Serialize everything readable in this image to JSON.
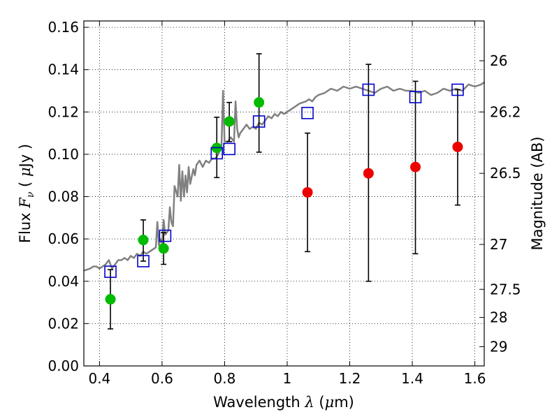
{
  "chart_data": {
    "type": "scatter",
    "xlabel": "Wavelength  λ (μm)",
    "xlabel_parts": {
      "text": "Wavelength  ",
      "lambda": "λ",
      "open": " (",
      "mu": "μ",
      "unit": "m)"
    },
    "ylabel": "Flux  Fν  ( μJy )",
    "ylabel_parts": {
      "text": "Flux  ",
      "F": "F",
      "nu": "ν",
      "open": "  ( ",
      "mu": "μ",
      "unit": "Jy )"
    },
    "y2label": "Magnitude (AB)",
    "xlim": [
      0.35,
      1.63
    ],
    "ylim": [
      0.0,
      0.163
    ],
    "grid": true,
    "x_ticks": [
      {
        "value": 0.4,
        "label": "0.4"
      },
      {
        "value": 0.6,
        "label": "0.6"
      },
      {
        "value": 0.8,
        "label": "0.8"
      },
      {
        "value": 1.0,
        "label": "1"
      },
      {
        "value": 1.2,
        "label": "1.2"
      },
      {
        "value": 1.4,
        "label": "1.4"
      },
      {
        "value": 1.6,
        "label": "1.6"
      }
    ],
    "y_ticks": [
      {
        "value": 0.0,
        "label": "0.00"
      },
      {
        "value": 0.02,
        "label": "0.02"
      },
      {
        "value": 0.04,
        "label": "0.04"
      },
      {
        "value": 0.06,
        "label": "0.06"
      },
      {
        "value": 0.08,
        "label": "0.08"
      },
      {
        "value": 0.1,
        "label": "0.10"
      },
      {
        "value": 0.12,
        "label": "0.12"
      },
      {
        "value": 0.14,
        "label": "0.14"
      },
      {
        "value": 0.16,
        "label": "0.16"
      }
    ],
    "y2_ticks": [
      {
        "flux": 0.1442,
        "label": "26"
      },
      {
        "flux": 0.12,
        "label": "26.2"
      },
      {
        "flux": 0.091,
        "label": "26.5"
      },
      {
        "flux": 0.0574,
        "label": "27"
      },
      {
        "flux": 0.0362,
        "label": "27.5"
      },
      {
        "flux": 0.0229,
        "label": "28"
      },
      {
        "flux": 0.0091,
        "label": "29"
      }
    ],
    "colors": {
      "model": "#808080",
      "green": "#00bb00",
      "red": "#ee0000",
      "blue": "#0000cc",
      "error": "#000000"
    },
    "series": [
      {
        "name": "model spectrum",
        "kind": "line",
        "x": [
          0.35,
          0.37,
          0.38,
          0.39,
          0.4,
          0.41,
          0.42,
          0.43,
          0.44,
          0.45,
          0.46,
          0.47,
          0.48,
          0.49,
          0.5,
          0.51,
          0.52,
          0.53,
          0.54,
          0.55,
          0.56,
          0.57,
          0.58,
          0.585,
          0.59,
          0.595,
          0.6,
          0.605,
          0.61,
          0.62,
          0.625,
          0.63,
          0.635,
          0.64,
          0.65,
          0.655,
          0.66,
          0.665,
          0.67,
          0.675,
          0.68,
          0.685,
          0.69,
          0.7,
          0.705,
          0.71,
          0.72,
          0.73,
          0.74,
          0.75,
          0.76,
          0.77,
          0.78,
          0.79,
          0.795,
          0.8,
          0.81,
          0.82,
          0.83,
          0.835,
          0.84,
          0.845,
          0.85,
          0.86,
          0.87,
          0.88,
          0.89,
          0.9,
          0.91,
          0.92,
          0.93,
          0.94,
          0.95,
          0.96,
          0.97,
          0.98,
          0.99,
          1.0,
          1.02,
          1.04,
          1.06,
          1.07,
          1.08,
          1.09,
          1.1,
          1.12,
          1.14,
          1.16,
          1.18,
          1.2,
          1.22,
          1.24,
          1.26,
          1.28,
          1.3,
          1.32,
          1.34,
          1.36,
          1.38,
          1.4,
          1.42,
          1.44,
          1.46,
          1.48,
          1.5,
          1.52,
          1.54,
          1.56,
          1.58,
          1.6,
          1.62,
          1.63
        ],
        "y": [
          0.045,
          0.046,
          0.047,
          0.047,
          0.046,
          0.047,
          0.048,
          0.05,
          0.046,
          0.048,
          0.05,
          0.05,
          0.051,
          0.05,
          0.052,
          0.051,
          0.053,
          0.052,
          0.054,
          0.053,
          0.054,
          0.055,
          0.056,
          0.068,
          0.057,
          0.06,
          0.058,
          0.069,
          0.062,
          0.064,
          0.075,
          0.068,
          0.066,
          0.085,
          0.08,
          0.095,
          0.078,
          0.092,
          0.08,
          0.09,
          0.082,
          0.094,
          0.086,
          0.093,
          0.09,
          0.095,
          0.097,
          0.094,
          0.097,
          0.096,
          0.098,
          0.098,
          0.1,
          0.104,
          0.13,
          0.106,
          0.106,
          0.108,
          0.106,
          0.125,
          0.112,
          0.108,
          0.11,
          0.112,
          0.114,
          0.112,
          0.113,
          0.112,
          0.115,
          0.114,
          0.116,
          0.118,
          0.117,
          0.119,
          0.118,
          0.12,
          0.119,
          0.12,
          0.122,
          0.124,
          0.125,
          0.126,
          0.125,
          0.127,
          0.128,
          0.129,
          0.131,
          0.13,
          0.132,
          0.131,
          0.132,
          0.131,
          0.13,
          0.129,
          0.131,
          0.132,
          0.13,
          0.131,
          0.13,
          0.13,
          0.129,
          0.13,
          0.128,
          0.129,
          0.131,
          0.13,
          0.131,
          0.13,
          0.133,
          0.132,
          0.133,
          0.134
        ]
      },
      {
        "name": "green points",
        "kind": "scatter",
        "marker": "circle",
        "points": [
          {
            "x": 0.435,
            "y": 0.0315,
            "lo": 0.0175,
            "hi": 0.0455
          },
          {
            "x": 0.54,
            "y": 0.0595,
            "lo": 0.0495,
            "hi": 0.069
          },
          {
            "x": 0.605,
            "y": 0.0555,
            "lo": 0.048,
            "hi": 0.063
          },
          {
            "x": 0.775,
            "y": 0.103,
            "lo": 0.089,
            "hi": 0.1175
          },
          {
            "x": 0.815,
            "y": 0.1155,
            "lo": 0.106,
            "hi": 0.1245
          },
          {
            "x": 0.91,
            "y": 0.1245,
            "lo": 0.101,
            "hi": 0.1475
          }
        ]
      },
      {
        "name": "red points",
        "kind": "scatter",
        "marker": "circle",
        "points": [
          {
            "x": 1.065,
            "y": 0.082,
            "lo": 0.054,
            "hi": 0.11
          },
          {
            "x": 1.26,
            "y": 0.091,
            "lo": 0.04,
            "hi": 0.1425
          },
          {
            "x": 1.41,
            "y": 0.094,
            "lo": 0.053,
            "hi": 0.1345
          },
          {
            "x": 1.545,
            "y": 0.1035,
            "lo": 0.076,
            "hi": 0.1305
          }
        ]
      },
      {
        "name": "blue squares",
        "kind": "scatter",
        "marker": "square",
        "points": [
          {
            "x": 0.435,
            "y": 0.0445
          },
          {
            "x": 0.54,
            "y": 0.0495
          },
          {
            "x": 0.61,
            "y": 0.0615
          },
          {
            "x": 0.775,
            "y": 0.1005
          },
          {
            "x": 0.815,
            "y": 0.1025
          },
          {
            "x": 0.91,
            "y": 0.1155
          },
          {
            "x": 1.065,
            "y": 0.1195
          },
          {
            "x": 1.26,
            "y": 0.1305
          },
          {
            "x": 1.41,
            "y": 0.127
          },
          {
            "x": 1.545,
            "y": 0.1305
          }
        ]
      }
    ]
  }
}
